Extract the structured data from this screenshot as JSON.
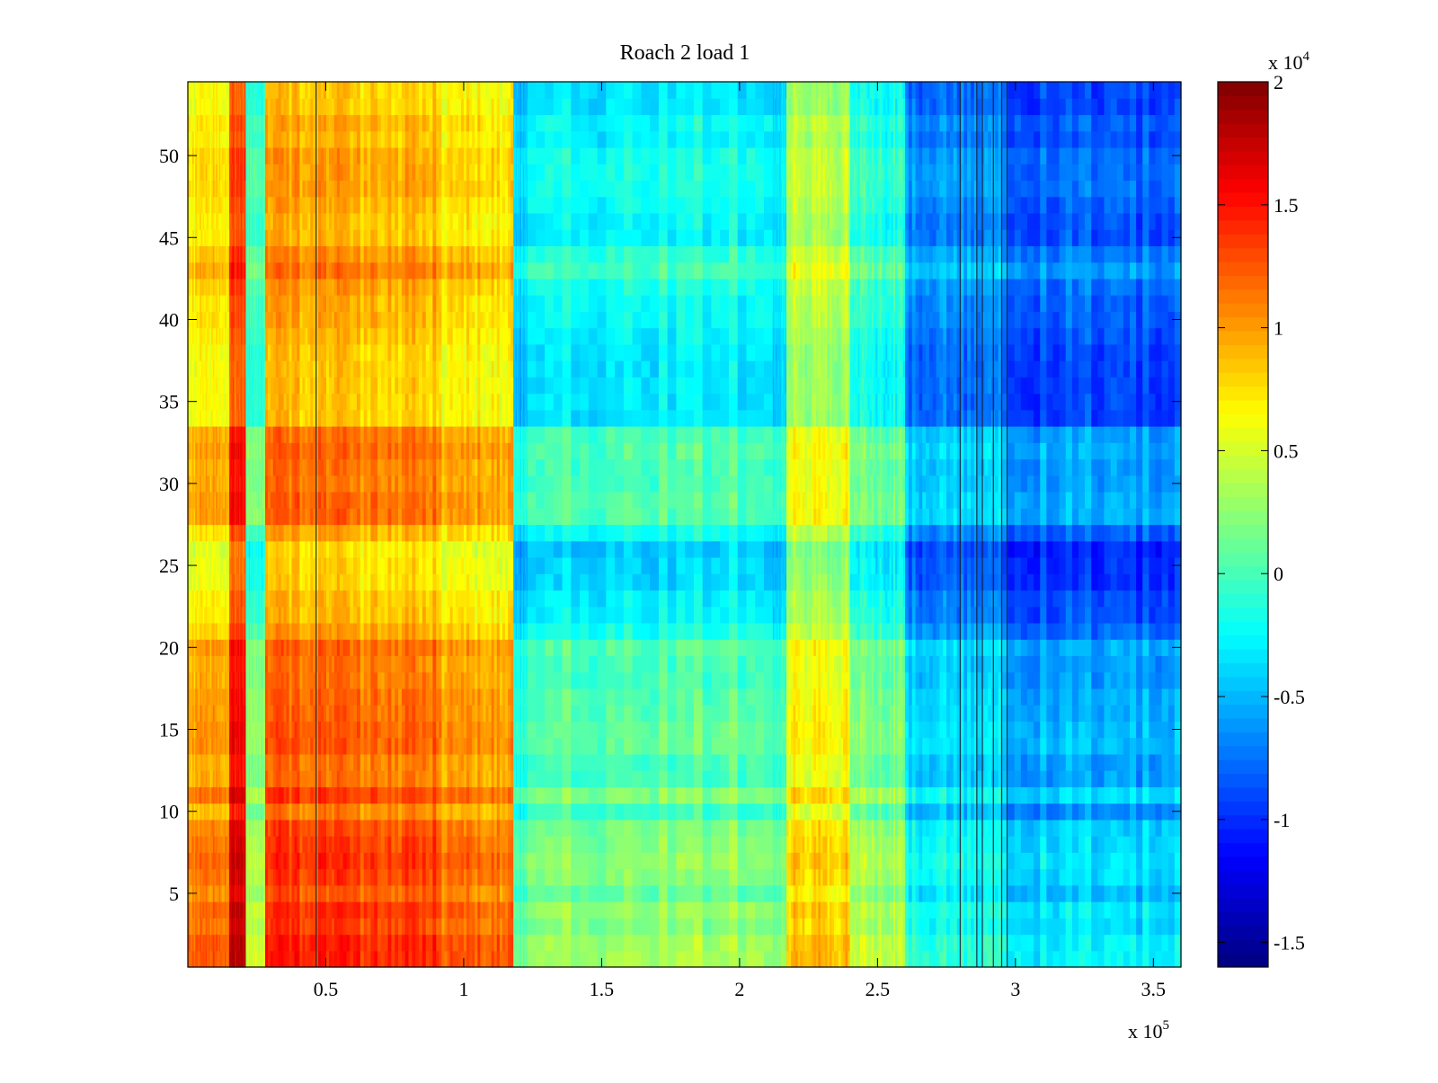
{
  "chart_data": {
    "type": "heatmap",
    "title": "Roach 2 load 1",
    "xlabel": "",
    "ylabel": "",
    "x_exponent_label": {
      "base": "x 10",
      "exp": "5"
    },
    "colorbar_exponent_label": {
      "base": "x 10",
      "exp": "4"
    },
    "xlim": [
      0,
      3.6
    ],
    "ylim": [
      0.5,
      54.5
    ],
    "x_ticks": [
      {
        "value": 0.5,
        "label": "0.5"
      },
      {
        "value": 1.0,
        "label": "1"
      },
      {
        "value": 1.5,
        "label": "1.5"
      },
      {
        "value": 2.0,
        "label": "2"
      },
      {
        "value": 2.5,
        "label": "2.5"
      },
      {
        "value": 3.0,
        "label": "3"
      },
      {
        "value": 3.5,
        "label": "3.5"
      }
    ],
    "y_ticks": [
      {
        "value": 5,
        "label": "5"
      },
      {
        "value": 10,
        "label": "10"
      },
      {
        "value": 15,
        "label": "15"
      },
      {
        "value": 20,
        "label": "20"
      },
      {
        "value": 25,
        "label": "25"
      },
      {
        "value": 30,
        "label": "30"
      },
      {
        "value": 35,
        "label": "35"
      },
      {
        "value": 40,
        "label": "40"
      },
      {
        "value": 45,
        "label": "45"
      },
      {
        "value": 50,
        "label": "50"
      }
    ],
    "colorbar": {
      "colormap": "jet",
      "clim": [
        -1.6,
        2.0
      ],
      "ticks": [
        {
          "value": -1.5,
          "label": "-1.5"
        },
        {
          "value": -1.0,
          "label": "-1"
        },
        {
          "value": -0.5,
          "label": "-0.5"
        },
        {
          "value": 0.0,
          "label": "0"
        },
        {
          "value": 0.5,
          "label": "0.5"
        },
        {
          "value": 1.0,
          "label": "1"
        },
        {
          "value": 1.5,
          "label": "1.5"
        },
        {
          "value": 2.0,
          "label": "2"
        }
      ]
    },
    "rows": 54,
    "x_bands": [
      {
        "x0": 0.0,
        "x1": 0.15,
        "level": 0.75
      },
      {
        "x0": 0.15,
        "x1": 0.21,
        "level": 1.35
      },
      {
        "x0": 0.21,
        "x1": 0.28,
        "level": 0.05
      },
      {
        "x0": 0.28,
        "x1": 0.55,
        "level": 1.0
      },
      {
        "x0": 0.55,
        "x1": 0.9,
        "level": 0.95
      },
      {
        "x0": 0.9,
        "x1": 1.18,
        "level": 0.8
      },
      {
        "x0": 1.18,
        "x1": 1.23,
        "level": -0.35
      },
      {
        "x0": 1.23,
        "x1": 2.12,
        "level": -0.15
      },
      {
        "x0": 2.12,
        "x1": 2.17,
        "level": -0.25
      },
      {
        "x0": 2.17,
        "x1": 2.4,
        "level": 0.45
      },
      {
        "x0": 2.4,
        "x1": 2.6,
        "level": -0.05
      },
      {
        "x0": 2.6,
        "x1": 2.95,
        "level": -0.6
      },
      {
        "x0": 2.95,
        "x1": 3.6,
        "level": -0.75
      }
    ],
    "row_modulation": [
      0.45,
      0.45,
      0.35,
      0.4,
      0.25,
      0.35,
      0.4,
      0.35,
      0.3,
      0.1,
      0.35,
      0.15,
      0.15,
      0.25,
      0.25,
      0.2,
      0.2,
      0.15,
      0.15,
      0.2,
      0.0,
      -0.1,
      -0.1,
      -0.2,
      -0.2,
      -0.25,
      -0.05,
      0.2,
      0.2,
      0.15,
      0.15,
      0.2,
      0.15,
      -0.15,
      -0.15,
      -0.15,
      -0.15,
      -0.15,
      -0.1,
      -0.05,
      -0.05,
      0.0,
      0.15,
      0.05,
      -0.1,
      -0.1,
      -0.05,
      0.0,
      0.0,
      0.0,
      -0.1,
      -0.05,
      -0.15,
      -0.15
    ],
    "dark_lines_x": [
      0.465,
      2.8,
      2.86,
      2.88,
      2.92,
      2.95,
      2.97
    ]
  }
}
